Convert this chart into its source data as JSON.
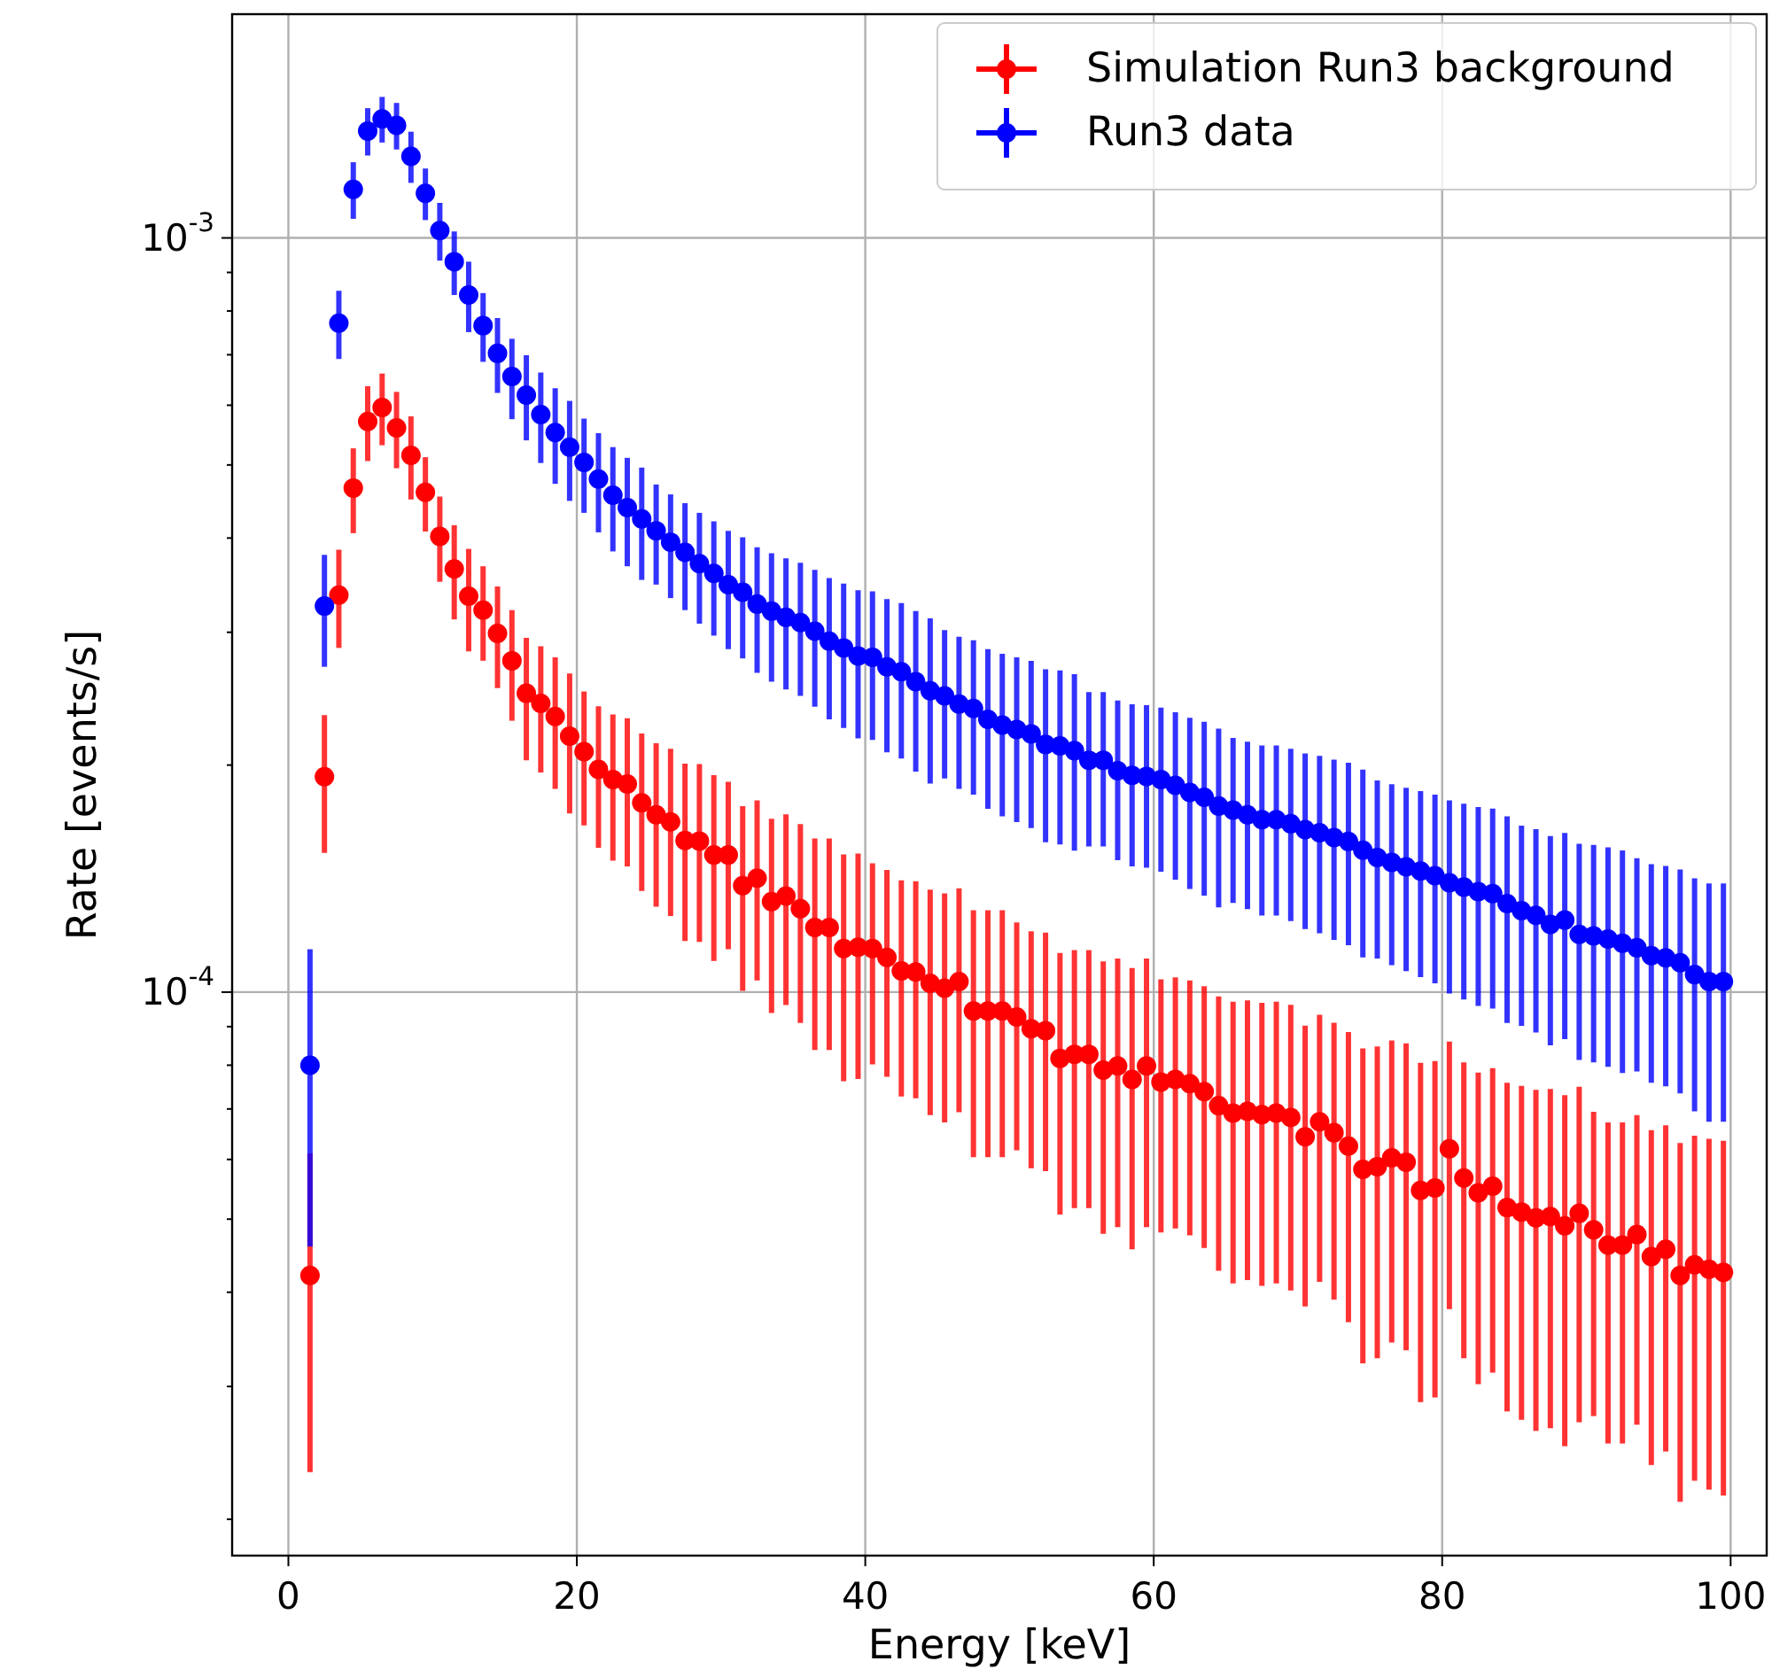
{
  "chart_data": {
    "type": "scatter",
    "xlabel": "Energy [keV]",
    "ylabel": "Rate [events/s]",
    "log": "y",
    "grid": true,
    "legend": "top right",
    "marker": "circle",
    "xlim": [
      -3.9,
      102.5
    ],
    "xticks": [
      0,
      20,
      40,
      60,
      80,
      100
    ],
    "ylim": [
      1.79e-05,
      0.00198
    ],
    "yticks": [
      {
        "value": 2e-05,
        "label": null
      },
      {
        "value": 3e-05,
        "label": null
      },
      {
        "value": 4e-05,
        "label": null
      },
      {
        "value": 5e-05,
        "label": null
      },
      {
        "value": 6e-05,
        "label": null
      },
      {
        "value": 7e-05,
        "label": null
      },
      {
        "value": 8e-05,
        "label": null
      },
      {
        "value": 9e-05,
        "label": null
      },
      {
        "value": 0.0001,
        "label": "10$^{-4}$"
      },
      {
        "value": 0.0002,
        "label": null
      },
      {
        "value": 0.0003,
        "label": null
      },
      {
        "value": 0.0004,
        "label": null
      },
      {
        "value": 0.0005,
        "label": null
      },
      {
        "value": 0.0006,
        "label": null
      },
      {
        "value": 0.0007,
        "label": null
      },
      {
        "value": 0.0008,
        "label": null
      },
      {
        "value": 0.0009,
        "label": null
      },
      {
        "value": 0.001,
        "label": "10$^{-3}$"
      }
    ],
    "x": [
      1.5,
      2.5,
      3.5,
      4.5,
      5.5,
      6.5,
      7.5,
      8.5,
      9.5,
      10.5,
      11.5,
      12.5,
      13.5,
      14.5,
      15.5,
      16.5,
      17.5,
      18.5,
      19.5,
      20.5,
      21.5,
      22.5,
      23.5,
      24.5,
      25.5,
      26.5,
      27.5,
      28.5,
      29.5,
      30.5,
      31.5,
      32.5,
      33.5,
      34.5,
      35.5,
      36.5,
      37.5,
      38.5,
      39.5,
      40.5,
      41.5,
      42.5,
      43.5,
      44.5,
      45.5,
      46.5,
      47.5,
      48.5,
      49.5,
      50.5,
      51.5,
      52.5,
      53.5,
      54.5,
      55.5,
      56.5,
      57.5,
      58.5,
      59.5,
      60.5,
      61.5,
      62.5,
      63.5,
      64.5,
      65.5,
      66.5,
      67.5,
      68.5,
      69.5,
      70.5,
      71.5,
      72.5,
      73.5,
      74.5,
      75.5,
      76.5,
      77.5,
      78.5,
      79.5,
      80.5,
      81.5,
      82.5,
      83.5,
      84.5,
      85.5,
      86.5,
      87.5,
      88.5,
      89.5,
      90.5,
      91.5,
      92.5,
      93.5,
      94.5,
      95.5,
      96.5,
      97.5,
      98.5,
      99.5
    ],
    "series": [
      {
        "name": "Simulation Run3 background",
        "color": "#ff0000",
        "values": [
          4.21e-05,
          0.000193,
          0.000336,
          0.000466,
          0.000571,
          0.000596,
          0.00056,
          0.000515,
          0.00046,
          0.000402,
          0.000364,
          0.000335,
          0.000321,
          0.000299,
          0.000275,
          0.000249,
          0.0002415,
          0.000232,
          0.0002185,
          0.0002084,
          0.0001974,
          0.0001914,
          0.0001888,
          0.0001782,
          0.0001718,
          0.0001682,
          0.0001589,
          0.0001586,
          0.000152,
          0.000152,
          0.0001384,
          0.0001416,
          0.0001318,
          0.0001341,
          0.000129,
          0.0001218,
          0.0001218,
          0.0001142,
          0.0001147,
          0.0001142,
          0.0001112,
          0.0001067,
          0.0001063,
          0.0001027,
          0.0001012,
          0.0001033,
          9.44e-05,
          9.44e-05,
          9.44e-05,
          9.27e-05,
          8.94e-05,
          8.89e-05,
          8.17e-05,
          8.27e-05,
          8.27e-05,
          7.88e-05,
          7.98e-05,
          7.66e-05,
          7.98e-05,
          7.6e-05,
          7.66e-05,
          7.56e-05,
          7.38e-05,
          7.07e-05,
          6.91e-05,
          6.95e-05,
          6.88e-05,
          6.91e-05,
          6.82e-05,
          6.43e-05,
          6.73e-05,
          6.51e-05,
          6.25e-05,
          5.82e-05,
          5.87e-05,
          6.03e-05,
          5.95e-05,
          5.46e-05,
          5.5e-05,
          6.2e-05,
          5.67e-05,
          5.42e-05,
          5.53e-05,
          5.18e-05,
          5.11e-05,
          5.02e-05,
          5.04e-05,
          4.9e-05,
          5.09e-05,
          4.84e-05,
          4.62e-05,
          4.62e-05,
          4.77e-05,
          4.46e-05,
          4.56e-05,
          4.21e-05,
          4.35e-05,
          4.29e-05,
          4.25e-05
        ],
        "errors": [
          1.9e-05,
          4e-05,
          5e-05,
          6e-05,
          6.5e-05,
          6.5e-05,
          6.5e-05,
          6.5e-05,
          5.2e-05,
          5.2e-05,
          5.2e-05,
          5.2e-05,
          4.6e-05,
          4.6e-05,
          4.6e-05,
          4.6e-05,
          4.6e-05,
          4.6e-05,
          4.6e-05,
          4.2e-05,
          4.2e-05,
          4.2e-05,
          4.2e-05,
          4.2e-05,
          4.2e-05,
          4.2e-05,
          4.2e-05,
          4.2e-05,
          4.2e-05,
          3.8e-05,
          3.8e-05,
          3.8e-05,
          3.8e-05,
          3.8e-05,
          3.8e-05,
          3.8e-05,
          3.8e-05,
          3.8e-05,
          3.8e-05,
          3.4e-05,
          3.4e-05,
          3.4e-05,
          3.4e-05,
          3.4e-05,
          3.4e-05,
          3.4e-05,
          3.4e-05,
          3.4e-05,
          3.4e-05,
          3.1e-05,
          3.1e-05,
          3.1e-05,
          3.1e-05,
          3.1e-05,
          3.1e-05,
          3.1e-05,
          3.1e-05,
          3.1e-05,
          3.1e-05,
          2.8e-05,
          2.8e-05,
          2.8e-05,
          2.8e-05,
          2.8e-05,
          2.8e-05,
          2.8e-05,
          2.8e-05,
          2.8e-05,
          2.8e-05,
          2.6e-05,
          2.6e-05,
          2.6e-05,
          2.6e-05,
          2.6e-05,
          2.6e-05,
          2.6e-05,
          2.6e-05,
          2.6e-05,
          2.6e-05,
          2.4e-05,
          2.4e-05,
          2.4e-05,
          2.4e-05,
          2.4e-05,
          2.4e-05,
          2.4e-05,
          2.4e-05,
          2.4e-05,
          2.4e-05,
          2.1e-05,
          2.1e-05,
          2.1e-05,
          2.1e-05,
          2.1e-05,
          2.1e-05,
          2.1e-05,
          2.1e-05,
          2.1e-05,
          2.1e-05
        ]
      },
      {
        "name": "Run3 data",
        "color": "#0000ff",
        "values": [
          8e-05,
          0.000325,
          0.000771,
          0.00116,
          0.001386,
          0.001438,
          0.00141,
          0.001283,
          0.001146,
          0.001023,
          0.00093,
          0.00084,
          0.000765,
          0.000703,
          0.000655,
          0.000619,
          0.000583,
          0.000552,
          0.000528,
          0.000504,
          0.000479,
          0.000456,
          0.000439,
          0.000424,
          0.000409,
          0.000395,
          0.000383,
          0.00037,
          0.000359,
          0.000347,
          0.000339,
          0.000327,
          0.00032,
          0.000314,
          0.000309,
          0.000301,
          0.000292,
          0.000286,
          0.000279,
          0.000278,
          0.00027,
          0.000266,
          0.000258,
          0.000251,
          0.000247,
          0.000241,
          0.0002377,
          0.00023,
          0.000226,
          0.000223,
          0.00022,
          0.000213,
          0.000212,
          0.000209,
          0.000203,
          0.000203,
          0.0001966,
          0.0001938,
          0.0001932,
          0.0001914,
          0.000188,
          0.000184,
          0.0001813,
          0.0001765,
          0.0001743,
          0.0001718,
          0.0001693,
          0.0001693,
          0.0001672,
          0.0001642,
          0.0001627,
          0.0001603,
          0.0001584,
          0.0001542,
          0.0001508,
          0.0001486,
          0.0001466,
          0.0001447,
          0.0001427,
          0.0001396,
          0.0001378,
          0.0001359,
          0.0001351,
          0.000131,
          0.0001282,
          0.0001264,
          0.000123,
          0.0001246,
          0.0001193,
          0.0001187,
          0.0001176,
          0.0001161,
          0.0001145,
          0.0001118,
          0.000111,
          0.0001094,
          0.0001055,
          0.0001033,
          0.0001033
        ],
        "errors": [
          3.4e-05,
          5.5e-05,
          8e-05,
          0.0001,
          0.0001,
          0.0001,
          0.0001,
          0.0001,
          9e-05,
          9e-05,
          9e-05,
          9e-05,
          8e-05,
          8e-05,
          8e-05,
          8e-05,
          8e-05,
          8e-05,
          8e-05,
          7.2e-05,
          7.2e-05,
          7.2e-05,
          7.2e-05,
          7.2e-05,
          6.2e-05,
          6.2e-05,
          6.2e-05,
          6.2e-05,
          6.2e-05,
          6.2e-05,
          6.2e-05,
          6.2e-05,
          6.2e-05,
          6.2e-05,
          6.2e-05,
          6.2e-05,
          6.2e-05,
          6.2e-05,
          6.2e-05,
          6.2e-05,
          6.2e-05,
          6.2e-05,
          6.2e-05,
          6.2e-05,
          5.5e-05,
          5.5e-05,
          5.5e-05,
          5.5e-05,
          5.5e-05,
          5.5e-05,
          5.5e-05,
          5.5e-05,
          5.5e-05,
          5.5e-05,
          4.7e-05,
          4.7e-05,
          4.7e-05,
          4.7e-05,
          4.7e-05,
          4.7e-05,
          4.7e-05,
          4.7e-05,
          4.7e-05,
          4.7e-05,
          4.3e-05,
          4.3e-05,
          4.3e-05,
          4.3e-05,
          4.3e-05,
          4.3e-05,
          4.3e-05,
          4.3e-05,
          4.3e-05,
          4.3e-05,
          4e-05,
          4e-05,
          4e-05,
          4e-05,
          4e-05,
          4e-05,
          4e-05,
          4e-05,
          4e-05,
          4e-05,
          3.8e-05,
          3.8e-05,
          3.8e-05,
          3.8e-05,
          3.8e-05,
          3.8e-05,
          3.8e-05,
          3.8e-05,
          3.6e-05,
          3.6e-05,
          3.6e-05,
          3.6e-05,
          3.6e-05,
          3.6e-05,
          3.6e-05
        ]
      }
    ]
  }
}
